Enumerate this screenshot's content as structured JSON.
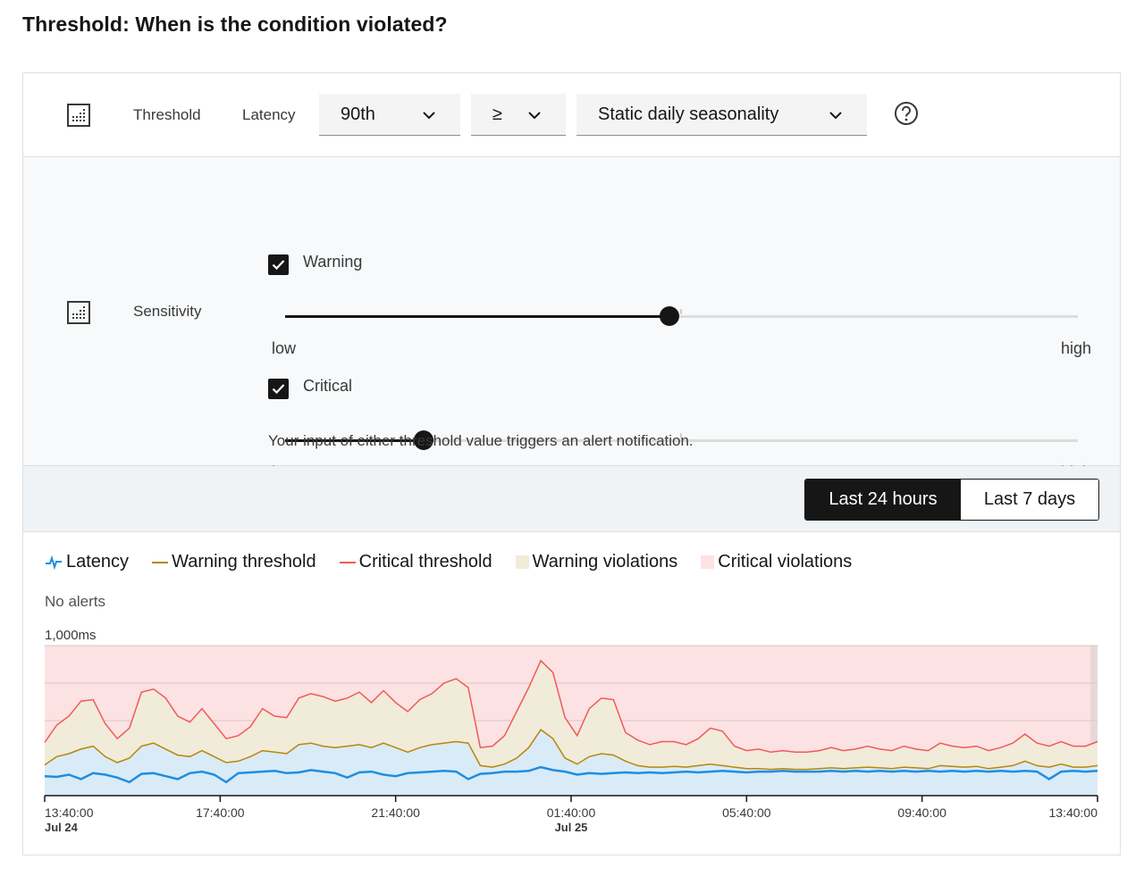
{
  "page": {
    "title": "Threshold: When is the condition violated?"
  },
  "threshold_row": {
    "icon": "grid-dots-icon",
    "label": "Threshold",
    "metric_label": "Latency",
    "percentile_value": "90th",
    "operator_value": "≥",
    "seasonality_value": "Static daily seasonality",
    "help_icon": "question-circle-icon"
  },
  "sensitivity": {
    "icon": "grid-dots-icon",
    "label": "Sensitivity",
    "warning": {
      "label": "Warning",
      "checked": true,
      "level": 0.485,
      "low": "low",
      "high": "high"
    },
    "critical": {
      "label": "Critical",
      "checked": true,
      "level": 0.175,
      "low": "low",
      "high": "high"
    },
    "hint": "Your input of either threshold value triggers an alert notification."
  },
  "range": {
    "active": "Last 24 hours",
    "inactive": "Last 7 days"
  },
  "legend": {
    "latency": "Latency",
    "warning_threshold": "Warning threshold",
    "critical_threshold": "Critical threshold",
    "warning_violations": "Warning violations",
    "critical_violations": "Critical violations",
    "colors": {
      "latency": "#1f8ee0",
      "warning": "#b8860b",
      "critical": "#f05a5a",
      "warning_area": "#f1ebda",
      "critical_area": "#fde2e3",
      "latency_area": "#d9ebf7"
    }
  },
  "status": {
    "no_alerts": "No alerts"
  },
  "chart_data": {
    "type": "line",
    "y_max_label": "1,000ms",
    "ylim": [
      0,
      1000
    ],
    "x_ticks": [
      {
        "label": "13:40:00",
        "sub": "Jul 24"
      },
      {
        "label": "17:40:00",
        "sub": ""
      },
      {
        "label": "21:40:00",
        "sub": ""
      },
      {
        "label": "01:40:00",
        "sub": "Jul 25"
      },
      {
        "label": "05:40:00",
        "sub": ""
      },
      {
        "label": "09:40:00",
        "sub": ""
      },
      {
        "label": "13:40:00",
        "sub": ""
      }
    ],
    "series": [
      {
        "name": "Critical threshold",
        "values": [
          355,
          470,
          530,
          630,
          640,
          480,
          380,
          450,
          690,
          710,
          650,
          530,
          490,
          580,
          480,
          380,
          400,
          460,
          580,
          530,
          520,
          650,
          680,
          660,
          630,
          650,
          690,
          620,
          700,
          620,
          560,
          640,
          680,
          750,
          780,
          720,
          320,
          330,
          400,
          560,
          720,
          900,
          820,
          520,
          400,
          580,
          650,
          640,
          420,
          370,
          340,
          360,
          360,
          340,
          380,
          450,
          430,
          330,
          300,
          310,
          290,
          300,
          290,
          290,
          300,
          320,
          300,
          310,
          330,
          310,
          300,
          330,
          310,
          300,
          350,
          330,
          320,
          330,
          300,
          320,
          350,
          410,
          350,
          330,
          360,
          330,
          330,
          360
        ]
      },
      {
        "name": "Warning threshold",
        "values": [
          205,
          260,
          280,
          310,
          330,
          260,
          220,
          250,
          330,
          350,
          310,
          270,
          260,
          300,
          260,
          220,
          230,
          260,
          300,
          290,
          280,
          340,
          350,
          330,
          320,
          330,
          340,
          320,
          350,
          320,
          290,
          320,
          340,
          350,
          360,
          350,
          200,
          190,
          210,
          250,
          320,
          440,
          380,
          250,
          210,
          260,
          280,
          270,
          230,
          200,
          190,
          190,
          195,
          190,
          200,
          210,
          200,
          190,
          180,
          180,
          175,
          180,
          175,
          175,
          180,
          185,
          180,
          185,
          190,
          185,
          180,
          190,
          185,
          180,
          200,
          195,
          190,
          195,
          180,
          190,
          200,
          230,
          200,
          190,
          210,
          190,
          190,
          200
        ]
      },
      {
        "name": "Latency",
        "values": [
          130,
          125,
          140,
          110,
          150,
          140,
          120,
          90,
          145,
          150,
          130,
          110,
          150,
          160,
          140,
          90,
          150,
          155,
          160,
          165,
          150,
          155,
          170,
          160,
          150,
          120,
          155,
          160,
          140,
          130,
          150,
          155,
          160,
          165,
          160,
          110,
          145,
          150,
          160,
          160,
          165,
          190,
          170,
          160,
          140,
          150,
          145,
          150,
          155,
          150,
          155,
          150,
          155,
          160,
          155,
          160,
          165,
          160,
          155,
          160,
          160,
          165,
          160,
          160,
          160,
          165,
          160,
          165,
          160,
          165,
          160,
          165,
          160,
          165,
          160,
          165,
          160,
          165,
          160,
          165,
          160,
          165,
          160,
          110,
          160,
          165,
          160,
          165
        ]
      }
    ]
  }
}
